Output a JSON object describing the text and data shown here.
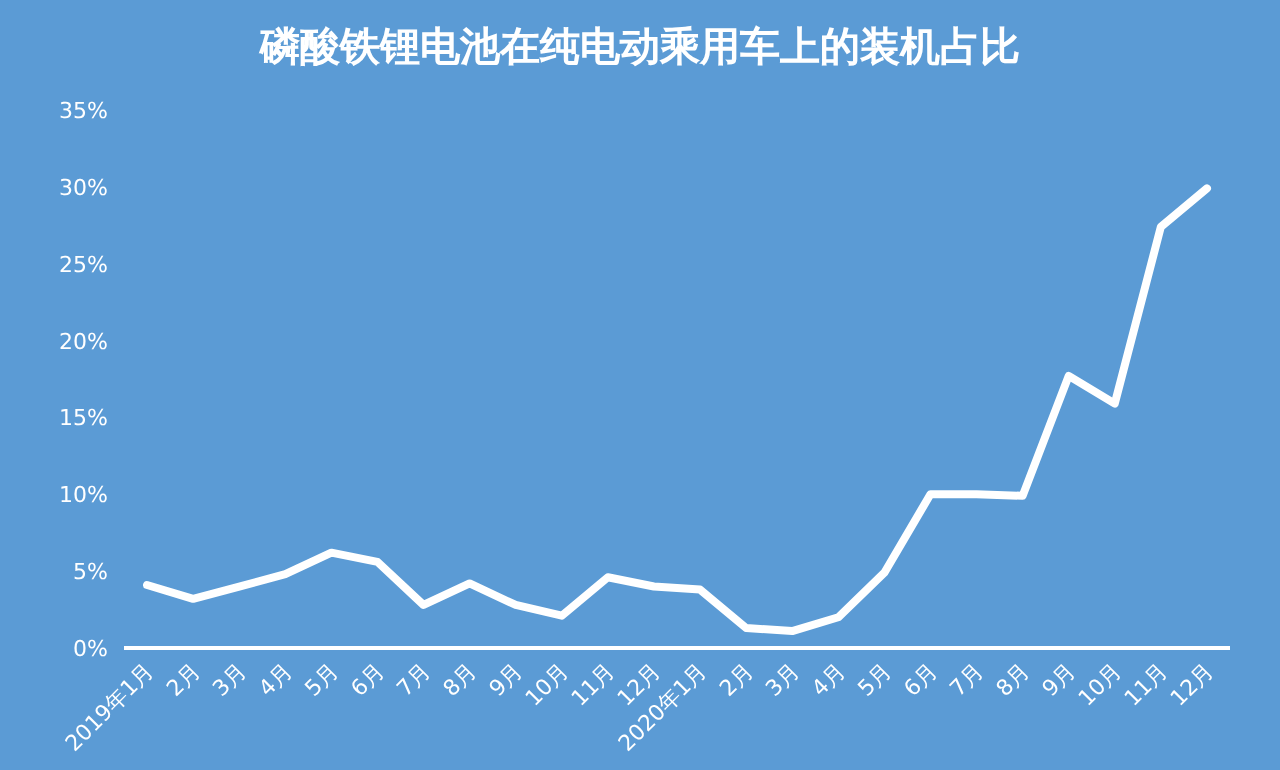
{
  "chart_data": {
    "type": "line",
    "title": "磷酸铁锂电池在纯电动乘用车上的装机占比",
    "categories": [
      "2019年1月",
      "2月",
      "3月",
      "4月",
      "5月",
      "6月",
      "7月",
      "8月",
      "9月",
      "10月",
      "11月",
      "12月",
      "2020年1月",
      "2月",
      "3月",
      "4月",
      "5月",
      "6月",
      "7月",
      "8月",
      "9月",
      "10月",
      "11月",
      "12月"
    ],
    "series": [
      {
        "color": "#ffffff",
        "values": [
          4.1,
          3.2,
          4.0,
          4.8,
          6.2,
          5.6,
          2.8,
          4.2,
          2.8,
          2.1,
          4.6,
          4.0,
          3.8,
          1.3,
          1.1,
          2.0,
          4.9,
          10.0,
          10.0,
          9.9,
          17.7,
          15.9,
          27.4,
          29.9
        ]
      }
    ],
    "ylim": [
      0,
      35
    ],
    "yticks": [
      {
        "value": 0,
        "label": "0%"
      },
      {
        "value": 5,
        "label": "5%"
      },
      {
        "value": 10,
        "label": "10%"
      },
      {
        "value": 15,
        "label": "15%"
      },
      {
        "value": 20,
        "label": "20%"
      },
      {
        "value": 25,
        "label": "25%"
      },
      {
        "value": 30,
        "label": "30%"
      },
      {
        "value": 35,
        "label": "35%"
      }
    ],
    "grid": false,
    "marker": "none",
    "line_style": "solid"
  }
}
